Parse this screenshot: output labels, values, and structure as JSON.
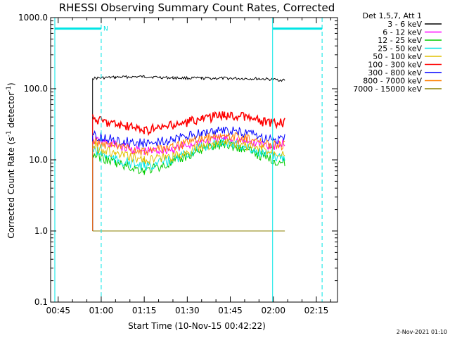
{
  "chart_data": {
    "type": "line",
    "title": "RHESSI Observing Summary Count Rates, Corrected",
    "xlabel": "Start Time (10-Nov-15 00:42:22)",
    "ylabel_prefix": "Corrected Count Rate (s",
    "ylabel_sup1": "-1",
    "ylabel_mid": " detector",
    "ylabel_sup2": "-1",
    "ylabel_suffix": ")",
    "y_scale": "log",
    "ylim": [
      0.1,
      1000
    ],
    "xlim": [
      "00:42:22",
      "02:22:22"
    ],
    "x_ticks": [
      "00:45",
      "01:00",
      "01:15",
      "01:30",
      "01:45",
      "02:00",
      "02:15"
    ],
    "y_ticks": [
      "0.1",
      "1.0",
      "10.0",
      "100.0",
      "1000.0"
    ],
    "legend_title": "Det 1,5,7, Att 1",
    "legend_position": "top-right, outside plot",
    "series": [
      {
        "name": "3 - 6 keV",
        "color": "#000000",
        "points": [
          [
            "00:57",
            140
          ],
          [
            "01:05",
            145
          ],
          [
            "01:15",
            148
          ],
          [
            "01:25",
            142
          ],
          [
            "01:35",
            140
          ],
          [
            "01:45",
            140
          ],
          [
            "01:55",
            138
          ],
          [
            "02:04",
            132
          ]
        ]
      },
      {
        "name": "6 - 12 keV",
        "color": "#ff00ff",
        "points": [
          [
            "00:57",
            19
          ],
          [
            "01:05",
            16
          ],
          [
            "01:15",
            13
          ],
          [
            "01:25",
            14
          ],
          [
            "01:35",
            18
          ],
          [
            "01:43",
            20
          ],
          [
            "01:50",
            18
          ],
          [
            "02:00",
            16
          ],
          [
            "02:04",
            17
          ]
        ]
      },
      {
        "name": "12 - 25 keV",
        "color": "#00cc00",
        "points": [
          [
            "00:57",
            12
          ],
          [
            "01:05",
            9
          ],
          [
            "01:15",
            7
          ],
          [
            "01:25",
            9
          ],
          [
            "01:35",
            14
          ],
          [
            "01:43",
            17
          ],
          [
            "01:50",
            14
          ],
          [
            "02:00",
            10
          ],
          [
            "02:04",
            9
          ]
        ]
      },
      {
        "name": "25 - 50 keV",
        "color": "#00e5e5",
        "points": [
          [
            "00:57",
            14
          ],
          [
            "01:05",
            10
          ],
          [
            "01:15",
            8
          ],
          [
            "01:25",
            10
          ],
          [
            "01:35",
            15
          ],
          [
            "01:43",
            18
          ],
          [
            "01:50",
            15
          ],
          [
            "02:00",
            11
          ],
          [
            "02:04",
            11
          ]
        ]
      },
      {
        "name": "50 - 100 keV",
        "color": "#e0c000",
        "points": [
          [
            "00:57",
            16
          ],
          [
            "01:05",
            12
          ],
          [
            "01:15",
            10
          ],
          [
            "01:25",
            11
          ],
          [
            "01:35",
            15
          ],
          [
            "01:43",
            18
          ],
          [
            "01:50",
            16
          ],
          [
            "02:00",
            13
          ],
          [
            "02:04",
            13
          ]
        ]
      },
      {
        "name": "100 - 300 keV",
        "color": "#ff0000",
        "points": [
          [
            "00:57",
            38
          ],
          [
            "01:05",
            32
          ],
          [
            "01:15",
            26
          ],
          [
            "01:25",
            30
          ],
          [
            "01:35",
            38
          ],
          [
            "01:43",
            43
          ],
          [
            "01:50",
            40
          ],
          [
            "02:00",
            32
          ],
          [
            "02:04",
            33
          ]
        ]
      },
      {
        "name": "300 - 800 keV",
        "color": "#0000ff",
        "points": [
          [
            "00:57",
            22
          ],
          [
            "01:05",
            19
          ],
          [
            "01:15",
            17
          ],
          [
            "01:25",
            19
          ],
          [
            "01:35",
            24
          ],
          [
            "01:43",
            26
          ],
          [
            "01:50",
            24
          ],
          [
            "02:00",
            19
          ],
          [
            "02:04",
            20
          ]
        ]
      },
      {
        "name": "800 - 7000 keV",
        "color": "#ff7f00",
        "points": [
          [
            "00:57",
            18
          ],
          [
            "01:05",
            15
          ],
          [
            "01:15",
            13
          ],
          [
            "01:25",
            15
          ],
          [
            "01:35",
            20
          ],
          [
            "01:43",
            22
          ],
          [
            "01:50",
            20
          ],
          [
            "02:00",
            16
          ],
          [
            "02:04",
            16
          ]
        ]
      },
      {
        "name": "7000 - 15000 keV",
        "color": "#8b8000",
        "points": [
          [
            "00:57",
            1
          ],
          [
            "01:05",
            1
          ],
          [
            "01:15",
            1
          ],
          [
            "01:25",
            1
          ],
          [
            "01:30",
            1
          ],
          [
            "01:45",
            1
          ],
          [
            "01:55",
            1
          ],
          [
            "02:04",
            1
          ]
        ]
      }
    ],
    "annotations": [
      {
        "type": "vertical_line_solid",
        "time": "00:43:50",
        "color": "#00e5e5"
      },
      {
        "type": "vertical_line_dashed",
        "time": "01:00:00",
        "color": "#00e5e5"
      },
      {
        "type": "vertical_line_solid",
        "time": "01:59:45",
        "color": "#00e5e5"
      },
      {
        "type": "vertical_line_dashed",
        "time": "02:17:00",
        "color": "#00e5e5"
      },
      {
        "type": "flag_bar",
        "label": "N",
        "from": "00:43:50",
        "to": "01:00:00",
        "y": 700,
        "color": "#00e5e5"
      },
      {
        "type": "flag_bar",
        "label": "",
        "from": "01:59:45",
        "to": "02:17:00",
        "y": 700,
        "color": "#00e5e5"
      }
    ]
  },
  "timestamp": "2-Nov-2021 01:10"
}
